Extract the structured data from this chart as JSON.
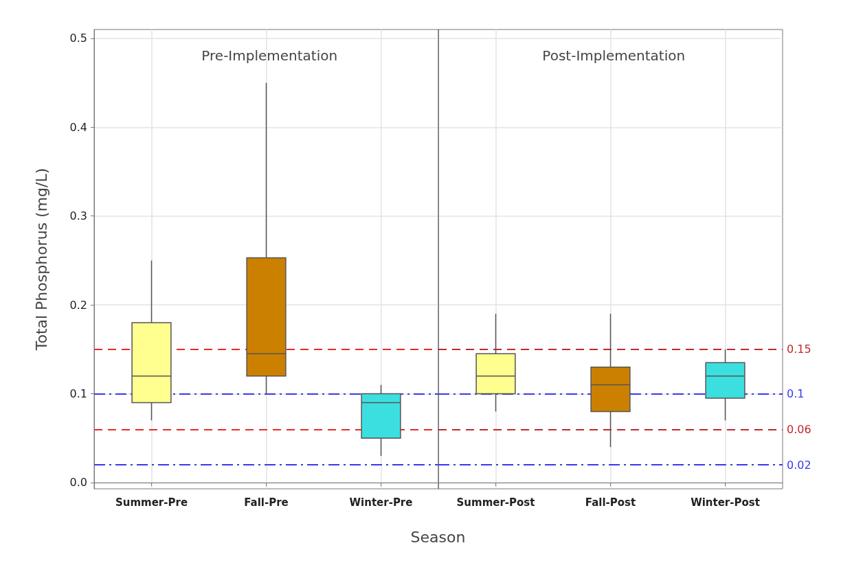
{
  "chart_data": [
    {
      "type": "box",
      "title": "Pre-Implementation",
      "xlabel": "Season",
      "ylabel": "Total Phosphorus (mg/L)",
      "categories": [
        "Summer-Pre",
        "Fall-Pre",
        "Winter-Pre"
      ],
      "boxes": [
        {
          "low": 0.07,
          "q1": 0.09,
          "median": 0.12,
          "q3": 0.18,
          "high": 0.25
        },
        {
          "low": 0.1,
          "q1": 0.12,
          "median": 0.145,
          "q3": 0.253,
          "high": 0.45
        },
        {
          "low": 0.03,
          "q1": 0.05,
          "median": 0.09,
          "q3": 0.1,
          "high": 0.11
        }
      ],
      "colors": [
        "#ffff8f",
        "#cc8000",
        "#3cdfdf"
      ],
      "ylim": [
        -0.007,
        0.51
      ],
      "yticks": [
        {
          "value": 0,
          "label": "0.0"
        },
        0.1,
        0.2,
        0.3,
        0.4,
        0.5
      ],
      "grid": true,
      "ref_lines": [
        {
          "axis": "y",
          "value": 0.15,
          "color": "#e52a2a",
          "line_style": "dashed"
        },
        {
          "axis": "y",
          "value": 0.1,
          "color": "#3838f0",
          "line_style": "dashdot"
        },
        {
          "axis": "y",
          "value": 0.06,
          "color": "#e52a2a",
          "line_style": "dashed"
        },
        {
          "axis": "y",
          "value": 0.02,
          "color": "#3838f0",
          "line_style": "dashdot"
        }
      ]
    },
    {
      "type": "box",
      "title": "Post-Implementation",
      "categories": [
        "Summer-Post",
        "Fall-Post",
        "Winter-Post"
      ],
      "boxes": [
        {
          "low": 0.08,
          "q1": 0.1,
          "median": 0.12,
          "q3": 0.145,
          "high": 0.19
        },
        {
          "low": 0.04,
          "q1": 0.08,
          "median": 0.11,
          "q3": 0.13,
          "high": 0.19
        },
        {
          "low": 0.07,
          "q1": 0.095,
          "median": 0.12,
          "q3": 0.135,
          "high": 0.15
        }
      ],
      "colors": [
        "#ffff8f",
        "#cc8000",
        "#3cdfdf"
      ],
      "ylim": [
        -0.007,
        0.51
      ],
      "yticks": [
        0,
        0.1,
        0.2,
        0.3,
        0.4,
        0.5
      ],
      "grid": true,
      "tick_labels": "x",
      "ref_lines": [
        {
          "axis": "y",
          "value": 0.15,
          "label": "0.15",
          "color": "#c0282a",
          "line_style": "dashed"
        },
        {
          "axis": "y",
          "value": 0.1,
          "label": "0.1",
          "color": "#3838f0",
          "line_style": "dashdot"
        },
        {
          "axis": "y",
          "value": 0.06,
          "label": "0.06",
          "color": "#c0282a",
          "line_style": "dashed"
        },
        {
          "axis": "y",
          "value": 0.02,
          "label": "0.02",
          "color": "#3838f0",
          "line_style": "dashdot"
        }
      ]
    }
  ]
}
